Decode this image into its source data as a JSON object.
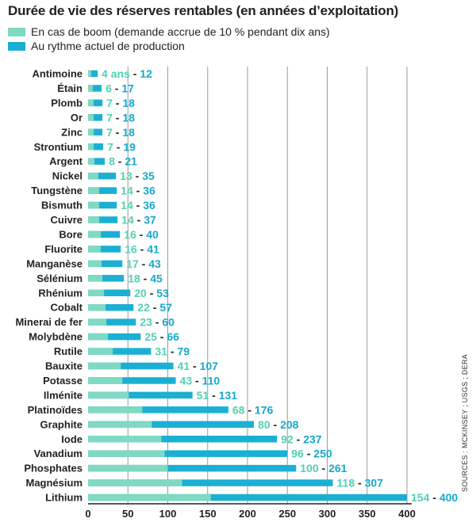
{
  "title": "Durée de vie des réserves rentables (en années d’exploitation)",
  "legend": {
    "boom": "En cas de boom (demande accrue de 10 % pendant dix ans)",
    "current": "Au rythme actuel de production"
  },
  "sources": "SOURCES : MCKINSEY ; USGS ; DERA",
  "colors": {
    "boom": "#7fd9c3",
    "current": "#1bb0d3",
    "boom_text": "#54cfb3",
    "current_text": "#15a9cd",
    "grid": "#9a9a9a",
    "text": "#222222"
  },
  "chart_data": {
    "type": "bar",
    "orientation": "horizontal",
    "title": "Durée de vie des réserves rentables (en années d’exploitation)",
    "xlabel": "",
    "ylabel": "",
    "xlim": [
      0,
      400
    ],
    "xticks": [
      0,
      50,
      100,
      150,
      200,
      250,
      300,
      350,
      400
    ],
    "grid": true,
    "categories": [
      "Antimoine",
      "Étain",
      "Plomb",
      "Or",
      "Zinc",
      "Strontium",
      "Argent",
      "Nickel",
      "Tungstène",
      "Bismuth",
      "Cuivre",
      "Bore",
      "Fluorite",
      "Manganèse",
      "Sélénium",
      "Rhénium",
      "Cobalt",
      "Minerai de fer",
      "Molybdène",
      "Rutile",
      "Bauxite",
      "Potasse",
      "Ilménite",
      "Platinoïdes",
      "Graphite",
      "Iode",
      "Vanadium",
      "Phosphates",
      "Magnésium",
      "Lithium"
    ],
    "series": [
      {
        "name": "En cas de boom (demande accrue de 10 % pendant dix ans)",
        "values": [
          4,
          6,
          7,
          7,
          7,
          7,
          8,
          13,
          14,
          14,
          14,
          16,
          16,
          17,
          18,
          20,
          22,
          23,
          25,
          31,
          41,
          43,
          51,
          68,
          80,
          92,
          96,
          100,
          118,
          154
        ]
      },
      {
        "name": "Au rythme actuel de production",
        "values": [
          12,
          17,
          18,
          18,
          18,
          19,
          21,
          35,
          36,
          36,
          37,
          40,
          41,
          43,
          45,
          53,
          57,
          60,
          66,
          79,
          107,
          110,
          131,
          176,
          208,
          237,
          250,
          261,
          307,
          400
        ]
      }
    ],
    "label_suffix": [
      " ans",
      "",
      "",
      "",
      "",
      "",
      "",
      "",
      "",
      "",
      "",
      "",
      "",
      "",
      "",
      "",
      "",
      "",
      "",
      "",
      "",
      "",
      "",
      "",
      "",
      "",
      "",
      "",
      "",
      ""
    ],
    "label_separator": " - "
  }
}
